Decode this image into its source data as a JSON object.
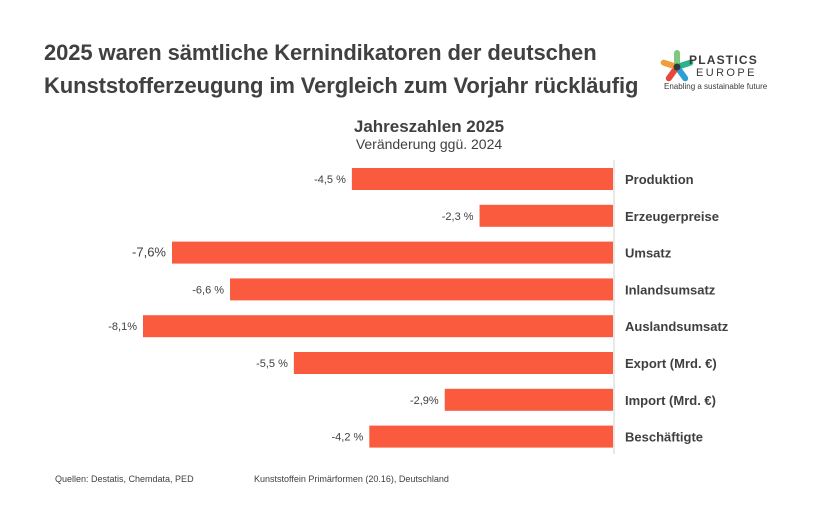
{
  "header": {
    "title_line1": "2025 waren sämtliche Kernindikatoren der deutschen",
    "title_line2": "Kunststofferzeugung im Vergleich zum Vorjahr rückläufig"
  },
  "logo": {
    "name_line1": "PLASTICS",
    "name_line2": "EUROPE",
    "tagline": "Enabling a sustainable future",
    "colors": [
      "#7fc97f",
      "#2bb48c",
      "#2e9fd6",
      "#e8453c",
      "#f39c3c"
    ],
    "center_color": "#2f3a3a"
  },
  "footer": {
    "sources": "Quellen: Destatis, Chemdata, PED",
    "scope": "Kunststoffein Primärformen (20.16), Deutschland"
  },
  "chart_data": {
    "type": "bar",
    "orientation": "horizontal",
    "title": "Jahreszahlen 2025",
    "subtitle": "Veränderung ggü. 2024",
    "xlabel": "",
    "ylabel": "",
    "categories": [
      "Produktion",
      "Erzeugerpreise",
      "Umsatz",
      "Inlandsumsatz",
      "Auslandsumsatz",
      "Export (Mrd. €)",
      "Import (Mrd. €)",
      "Beschäftigte"
    ],
    "values": [
      -4.5,
      -2.3,
      -7.6,
      -6.6,
      -8.1,
      -5.5,
      -2.9,
      -4.2
    ],
    "value_labels": [
      "-4,5 %",
      "-2,3 %",
      "-7,6%",
      "-6,6 %",
      "-8,1%",
      "-5,5 %",
      "-2,9%",
      "-4,2 %"
    ],
    "unit": "%",
    "xlim": [
      -8.1,
      0
    ],
    "grid": false,
    "bar_color": "#fa5b3e",
    "axis_color": "#d9d9d9",
    "category_label_position": "right of zero axis"
  }
}
